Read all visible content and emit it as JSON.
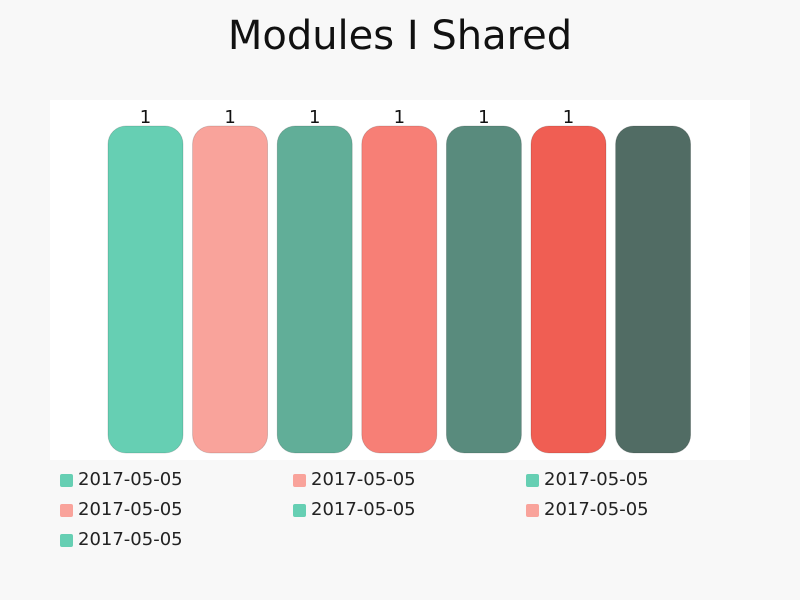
{
  "chart_data": {
    "type": "bar",
    "title": "Modules I Shared",
    "xlabel": "",
    "ylabel": "",
    "ylim": [
      0,
      1
    ],
    "grid": false,
    "legend_position": "bottom",
    "series": [
      {
        "name": "2017-05-05",
        "value": 1,
        "label": "1",
        "color": "#66cfb3"
      },
      {
        "name": "2017-05-05",
        "value": 1,
        "label": "1",
        "color": "#f9a39b"
      },
      {
        "name": "2017-05-05",
        "value": 1,
        "label": "1",
        "color": "#61ae98"
      },
      {
        "name": "2017-05-05",
        "value": 1,
        "label": "1",
        "color": "#f77f76"
      },
      {
        "name": "2017-05-05",
        "value": 1,
        "label": "1",
        "color": "#598b7d"
      },
      {
        "name": "2017-05-05",
        "value": 1,
        "label": "1",
        "color": "#f05e53"
      },
      {
        "name": "2017-05-05",
        "value": 1,
        "label": "",
        "color": "#516c64"
      }
    ],
    "legend": [
      {
        "label": "2017-05-05",
        "color": "#66cfb3"
      },
      {
        "label": "2017-05-05",
        "color": "#f9a39b"
      },
      {
        "label": "2017-05-05",
        "color": "#66cfb3"
      },
      {
        "label": "2017-05-05",
        "color": "#f9a39b"
      },
      {
        "label": "2017-05-05",
        "color": "#66cfb3"
      },
      {
        "label": "2017-05-05",
        "color": "#f9a39b"
      },
      {
        "label": "2017-05-05",
        "color": "#66cfb3"
      }
    ]
  }
}
